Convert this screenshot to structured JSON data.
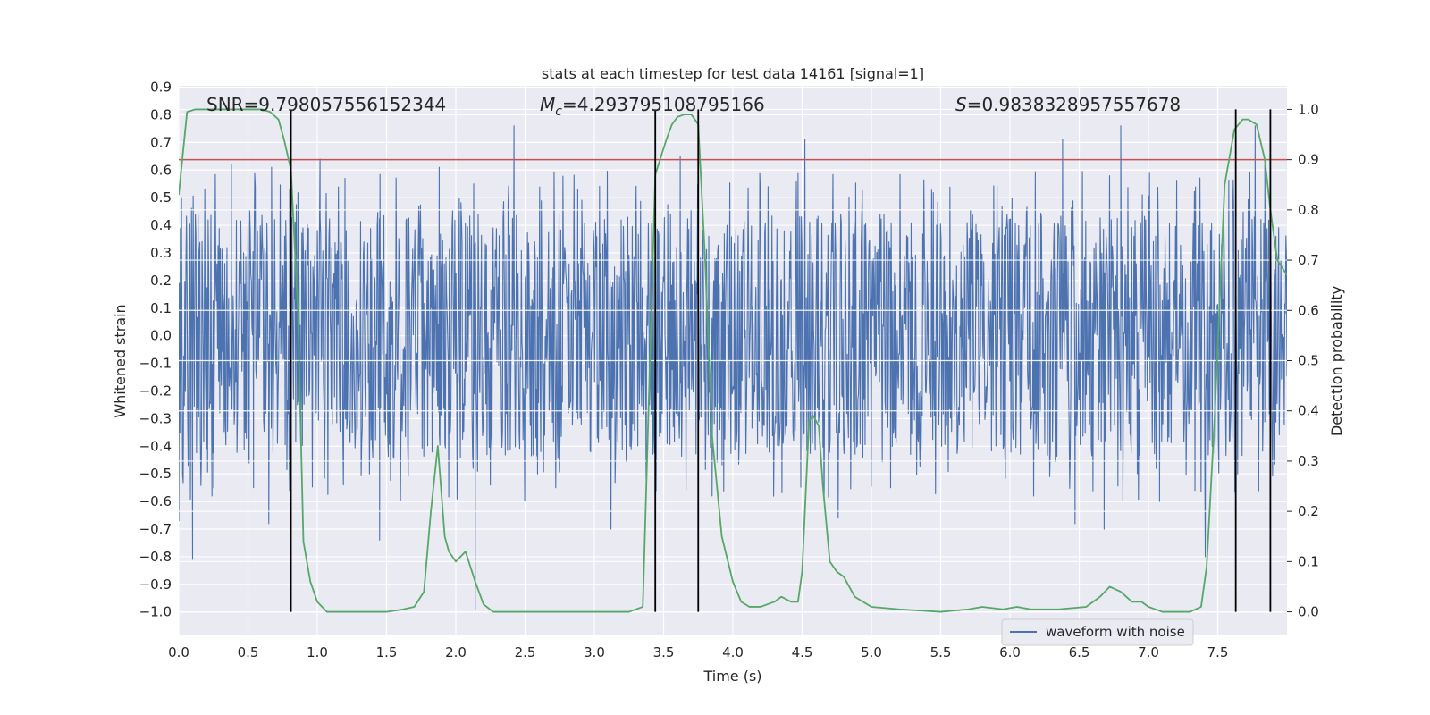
{
  "chart_data": {
    "type": "line",
    "title": "stats at each timestep for test data 14161 [signal=1]",
    "xlabel": "Time (s)",
    "ylabel_left": "Whitened strain",
    "ylabel_right": "Detection probability",
    "xlim": [
      0.0,
      8.0
    ],
    "ylim_left": [
      -1.085,
      0.905
    ],
    "ylim_right": [
      -0.047,
      1.047
    ],
    "x_ticks": [
      "0.0",
      "0.5",
      "1.0",
      "1.5",
      "2.0",
      "2.5",
      "3.0",
      "3.5",
      "4.0",
      "4.5",
      "5.0",
      "5.5",
      "6.0",
      "6.5",
      "7.0",
      "7.5"
    ],
    "y_ticks_left": [
      "0.9",
      "0.8",
      "0.7",
      "0.6",
      "0.5",
      "0.4",
      "0.3",
      "0.2",
      "0.1",
      "0.0",
      "−0.1",
      "−0.2",
      "−0.3",
      "−0.4",
      "−0.5",
      "−0.6",
      "−0.7",
      "−0.8",
      "−0.9",
      "−1.0"
    ],
    "y_ticks_right": [
      "1.0",
      "0.9",
      "0.8",
      "0.7",
      "0.6",
      "0.5",
      "0.4",
      "0.3",
      "0.2",
      "0.1",
      "0.0"
    ],
    "annotations": {
      "snr": "SNR=9.798057556152344",
      "mc_symbol": "M",
      "mc_sub": "c",
      "mc_value": "=4.293795108795166",
      "s_symbol": "S",
      "s_value": "=0.9838328957557678"
    },
    "legend": {
      "label": "waveform with noise",
      "placement": "lower-right"
    },
    "threshold": {
      "value": 0.9,
      "axis": "right",
      "color": "#c44e52"
    },
    "vlines": [
      0.81,
      3.44,
      3.75,
      7.63,
      7.88
    ],
    "vline_range_right": [
      0.0,
      1.0
    ],
    "colors": {
      "strain": "#4c72b0",
      "prob": "#55a868",
      "threshold": "#c44e52",
      "vline": "#000000",
      "bg": "#eaeaf2",
      "grid": "#ffffff"
    },
    "series": [
      {
        "name": "Detection probability",
        "axis": "right",
        "x": [
          0.0,
          0.06,
          0.12,
          0.2,
          0.3,
          0.4,
          0.5,
          0.6,
          0.66,
          0.72,
          0.76,
          0.81,
          0.86,
          0.9,
          0.95,
          1.0,
          1.07,
          1.15,
          1.3,
          1.5,
          1.62,
          1.7,
          1.77,
          1.82,
          1.87,
          1.92,
          1.95,
          2.0,
          2.07,
          2.14,
          2.2,
          2.27,
          2.35,
          2.5,
          3.0,
          3.15,
          3.25,
          3.35,
          3.44,
          3.52,
          3.56,
          3.6,
          3.65,
          3.7,
          3.75,
          3.8,
          3.85,
          3.92,
          4.0,
          4.06,
          4.12,
          4.2,
          4.3,
          4.35,
          4.42,
          4.47,
          4.5,
          4.55,
          4.58,
          4.62,
          4.65,
          4.7,
          4.75,
          4.8,
          4.88,
          5.0,
          5.2,
          5.5,
          5.7,
          5.8,
          5.95,
          6.05,
          6.15,
          6.35,
          6.55,
          6.65,
          6.72,
          6.8,
          6.88,
          6.95,
          7.0,
          7.1,
          7.3,
          7.38,
          7.42,
          7.48,
          7.55,
          7.62,
          7.68,
          7.72,
          7.78,
          7.84,
          7.88,
          7.93,
          8.0
        ],
        "y": [
          0.83,
          0.995,
          1.0,
          1.0,
          1.0,
          1.0,
          1.0,
          1.0,
          0.995,
          0.98,
          0.94,
          0.88,
          0.6,
          0.14,
          0.06,
          0.02,
          0.0,
          0.0,
          0.0,
          0.0,
          0.005,
          0.01,
          0.04,
          0.2,
          0.33,
          0.15,
          0.12,
          0.1,
          0.12,
          0.06,
          0.015,
          0.0,
          0.0,
          0.0,
          0.0,
          0.0,
          0.0,
          0.01,
          0.87,
          0.94,
          0.97,
          0.985,
          0.99,
          0.99,
          0.97,
          0.7,
          0.35,
          0.15,
          0.06,
          0.02,
          0.01,
          0.01,
          0.02,
          0.03,
          0.02,
          0.02,
          0.08,
          0.38,
          0.39,
          0.37,
          0.25,
          0.1,
          0.08,
          0.07,
          0.03,
          0.01,
          0.005,
          0.0,
          0.005,
          0.01,
          0.005,
          0.01,
          0.005,
          0.005,
          0.01,
          0.03,
          0.05,
          0.04,
          0.02,
          0.02,
          0.01,
          0.0,
          0.0,
          0.01,
          0.09,
          0.4,
          0.85,
          0.96,
          0.98,
          0.98,
          0.97,
          0.9,
          0.8,
          0.7,
          0.67
        ]
      },
      {
        "name": "waveform with noise",
        "axis": "left",
        "description_of_data": "whitened strain noise, 8 s, core amplitude about ±0.27 with peaks to about 0.76 and troughs to about −0.99",
        "x": [
          0.0,
          0.02,
          0.1,
          0.24,
          0.38,
          0.54,
          0.65,
          0.67,
          0.8,
          1.02,
          1.2,
          1.45,
          1.88,
          2.14,
          2.42,
          2.59,
          2.88,
          3.12,
          3.62,
          3.85,
          4.52,
          4.76,
          6.38,
          6.47,
          6.68,
          6.8,
          7.08,
          7.41,
          7.77,
          7.84,
          7.92
        ],
        "y": [
          -0.67,
          0.5,
          -0.81,
          -0.58,
          0.62,
          -0.55,
          -0.68,
          0.61,
          -0.56,
          0.64,
          0.57,
          -0.74,
          0.61,
          -0.99,
          0.76,
          -0.5,
          0.53,
          -0.7,
          0.65,
          -0.58,
          0.71,
          -0.66,
          0.71,
          -0.68,
          -0.7,
          0.76,
          -0.6,
          -0.8,
          0.76,
          0.62,
          0.36
        ]
      }
    ]
  }
}
